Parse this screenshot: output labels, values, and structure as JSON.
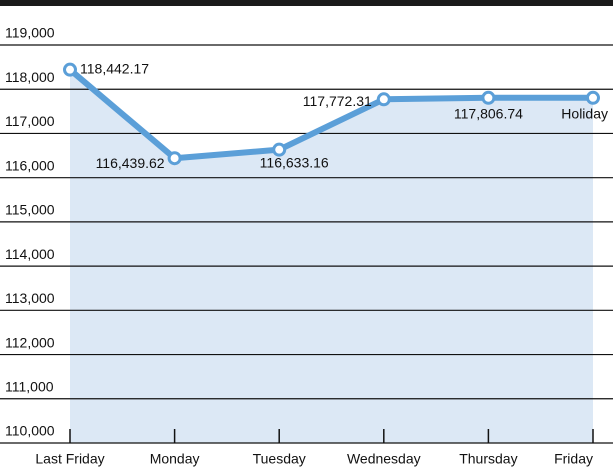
{
  "chart_data": {
    "type": "line",
    "categories": [
      "Last Friday",
      "Monday",
      "Tuesday",
      "Wednesday",
      "Thursday",
      "Friday"
    ],
    "values": [
      118442.17,
      116439.62,
      116633.16,
      117772.31,
      117806.74,
      117806.74
    ],
    "value_labels": [
      "118,442.17",
      "116,439.62",
      "116,633.16",
      "117,772.31",
      "117,806.74",
      "Holiday"
    ],
    "color": "#5b9fd8",
    "area_color": "#dce8f5",
    "ylim": [
      110000,
      119000
    ],
    "yticks": [
      {
        "value": 110000,
        "label": "110,000"
      },
      {
        "value": 111000,
        "label": "111,000"
      },
      {
        "value": 112000,
        "label": "112,000"
      },
      {
        "value": 113000,
        "label": "113,000"
      },
      {
        "value": 114000,
        "label": "114,000"
      },
      {
        "value": 115000,
        "label": "115,000"
      },
      {
        "value": 116000,
        "label": "116,000"
      },
      {
        "value": 117000,
        "label": "117,000"
      },
      {
        "value": 118000,
        "label": "118,000"
      },
      {
        "value": 119000,
        "label": "119,000"
      }
    ],
    "grid": true
  }
}
